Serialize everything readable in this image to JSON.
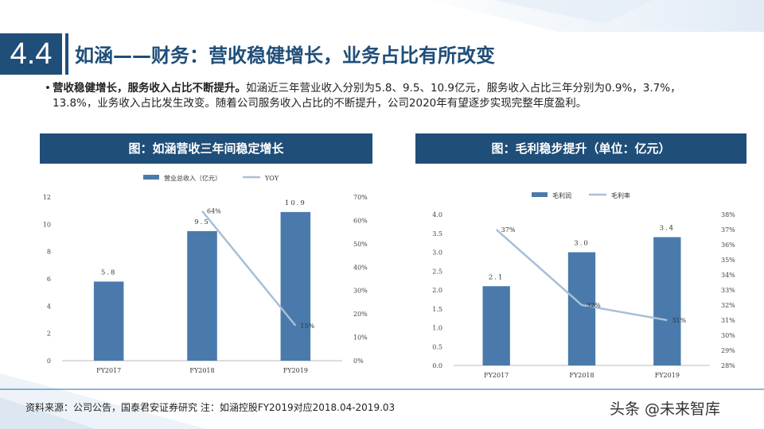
{
  "section": {
    "number": "4.4",
    "title": "如涵——财务：营收稳健增长，业务占比有所改变"
  },
  "bullet": {
    "marker": "•",
    "bold": "营收稳健增长，服务收入占比不断提升。",
    "text": "如涵近三年营业收入分别为5.8、9.5、10.9亿元，服务收入占比三年分别为0.9%，3.7%，13.8%，业务收入占比发生改变。随着公司服务收入占比的不断提升，公司2020年有望逐步实现完整年度盈利。"
  },
  "chart_left_title": "图：如涵营收三年间稳定增长",
  "chart_right_title": "图：毛利稳步提升（单位：亿元）",
  "footnote": "资料来源：公司公告，国泰君安证券研究 注：如涵控股FY2019对应2018.04-2019.03",
  "watermark": "头条 @未来智库",
  "colors": {
    "primary": "#1f4e79",
    "bar": "#4a7aab",
    "line": "#a7bfd8"
  },
  "chart_data": [
    {
      "type": "bar",
      "categories": [
        "FY2017",
        "FY2018",
        "FY2019"
      ],
      "series": [
        {
          "name": "营业总收入（亿元）",
          "type": "bar",
          "axis": "left",
          "values": [
            5.8,
            9.5,
            10.9
          ],
          "labels": [
            "5.8",
            "9.5",
            "10.9"
          ]
        },
        {
          "name": "YOY",
          "type": "line",
          "axis": "right",
          "values": [
            null,
            64,
            15
          ],
          "labels": [
            "",
            "64%",
            "15%"
          ]
        }
      ],
      "ylim": [
        0,
        12
      ],
      "yticks": [
        "0",
        "2",
        "4",
        "6",
        "8",
        "10",
        "12"
      ],
      "y2lim": [
        0,
        70
      ],
      "y2ticks": [
        "0%",
        "10%",
        "20%",
        "30%",
        "40%",
        "50%",
        "60%",
        "70%"
      ],
      "legend": "top-center",
      "grid": false
    },
    {
      "type": "bar",
      "categories": [
        "FY2017",
        "FY2018",
        "FY2019"
      ],
      "series": [
        {
          "name": "毛利润",
          "type": "bar",
          "axis": "left",
          "values": [
            2.1,
            3.0,
            3.4
          ],
          "labels": [
            "2.1",
            "3.0",
            "3.4"
          ]
        },
        {
          "name": "毛利率",
          "type": "line",
          "axis": "right",
          "values": [
            37,
            32,
            31
          ],
          "labels": [
            "37%",
            "32%",
            "31%"
          ]
        }
      ],
      "ylim": [
        0,
        4
      ],
      "yticks": [
        "0.0",
        "0.5",
        "1.0",
        "1.5",
        "2.0",
        "2.5",
        "3.0",
        "3.5",
        "4.0"
      ],
      "y2lim": [
        28,
        38
      ],
      "y2ticks": [
        "28%",
        "29%",
        "30%",
        "31%",
        "32%",
        "33%",
        "34%",
        "35%",
        "36%",
        "37%",
        "38%"
      ],
      "legend": "top-center",
      "grid": false
    }
  ]
}
